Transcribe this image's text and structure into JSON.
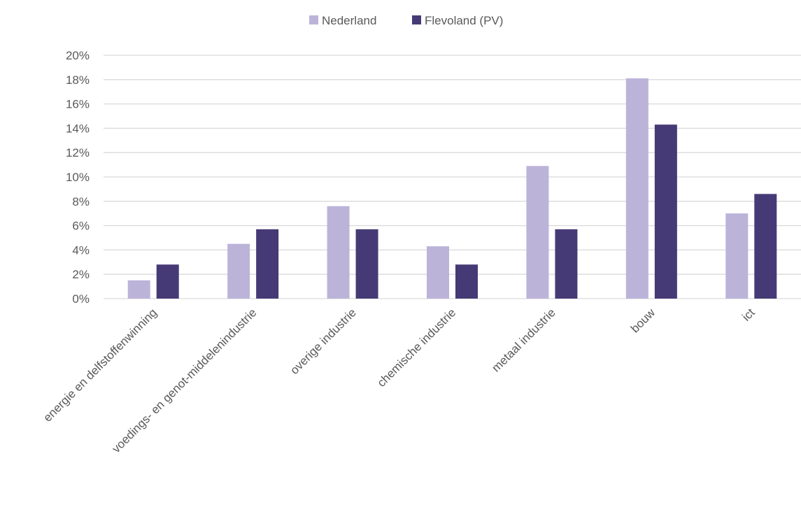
{
  "chart_data": {
    "type": "bar",
    "title": "",
    "xlabel": "",
    "ylabel": "",
    "categories": [
      "energie en delfstoffenwinning",
      "voedings- en genot-middelenindustrie",
      "overige industrie",
      "chemische industrie",
      "metaal industrie",
      "bouw",
      "ict"
    ],
    "series": [
      {
        "name": "Nederland",
        "color": "#bcb3d9",
        "values": [
          1.5,
          4.5,
          7.6,
          4.3,
          10.9,
          18.1,
          7.0
        ]
      },
      {
        "name": "Flevoland (PV)",
        "color": "#463a76",
        "values": [
          2.8,
          5.7,
          5.7,
          2.8,
          5.7,
          14.3,
          8.6
        ]
      }
    ],
    "ylim": [
      0,
      20
    ],
    "yticks": [
      "0%",
      "2%",
      "4%",
      "6%",
      "8%",
      "10%",
      "12%",
      "14%",
      "16%",
      "18%",
      "20%"
    ],
    "grid": true,
    "legend_position": "top-center",
    "gridline_color": "#d9d9d9"
  }
}
